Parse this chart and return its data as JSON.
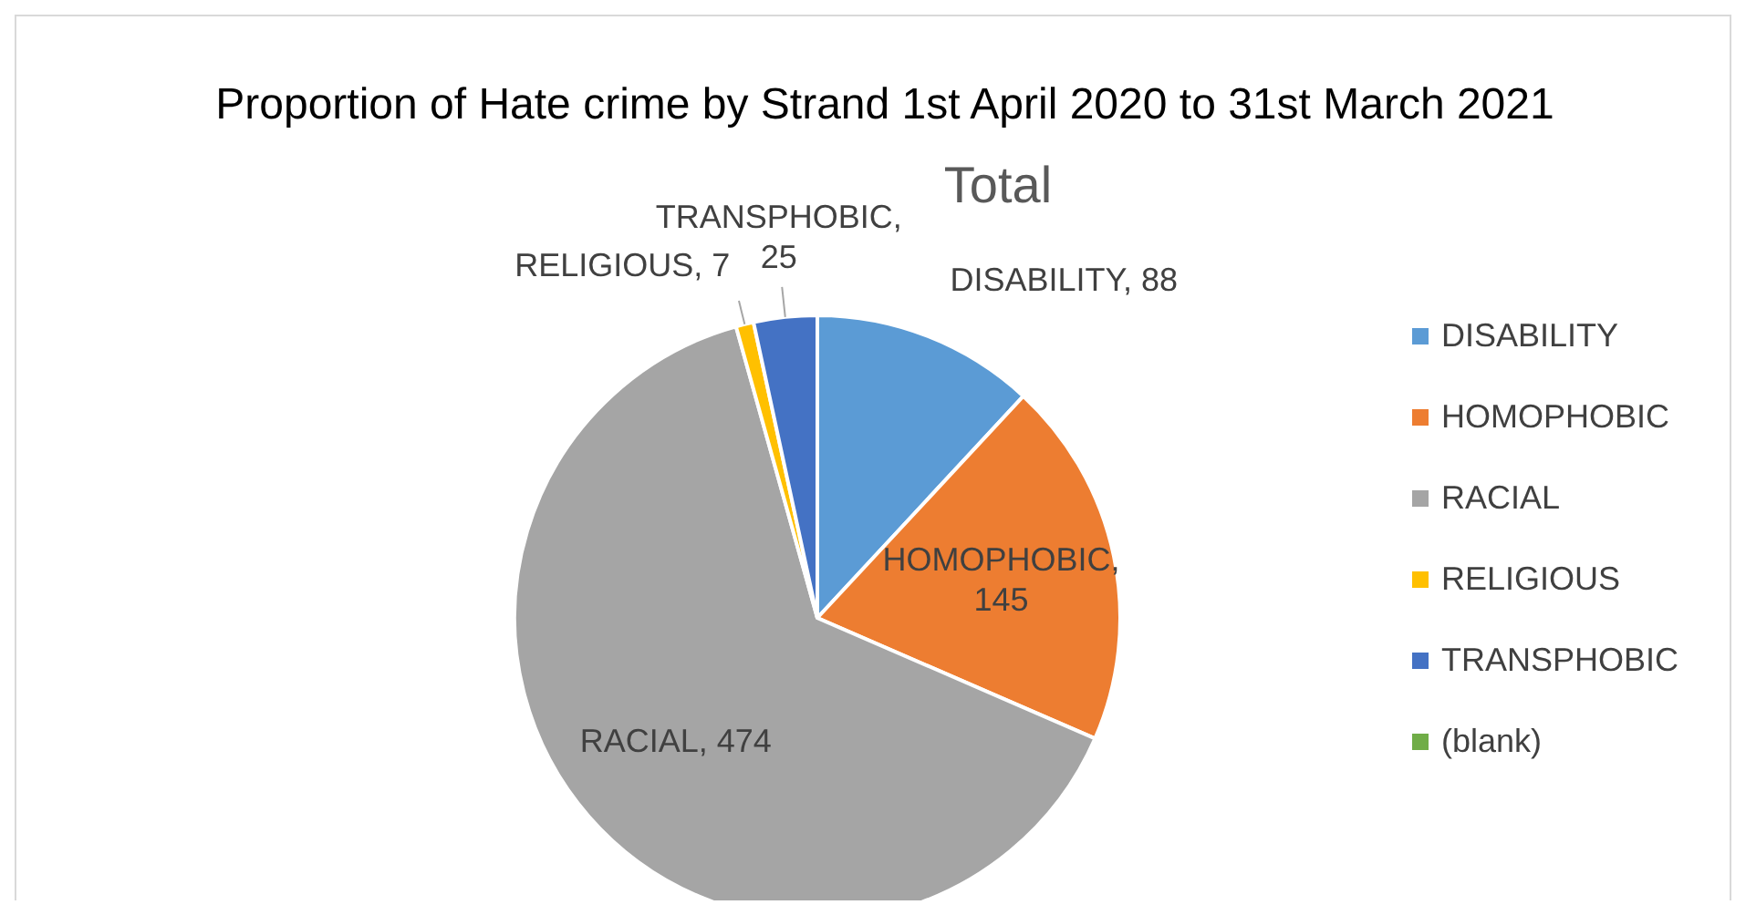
{
  "chart_data": {
    "type": "pie",
    "title": "Proportion of Hate crime by Strand 1st April 2020 to 31st March 2021",
    "subtitle": "Total",
    "categories": [
      "DISABILITY",
      "HOMOPHOBIC",
      "RACIAL",
      "RELIGIOUS",
      "TRANSPHOBIC",
      "(blank)"
    ],
    "values": [
      88,
      145,
      474,
      7,
      25,
      0
    ],
    "colors": [
      "#5b9bd5",
      "#ed7d31",
      "#a5a5a5",
      "#ffc000",
      "#4472c4",
      "#70ad47"
    ],
    "value_labels": [
      "DISABILITY, 88",
      "HOMOPHOBIC, 145",
      "RACIAL, 474",
      "RELIGIOUS, 7",
      "TRANSPHOBIC, 25",
      null
    ],
    "legend": "right"
  }
}
